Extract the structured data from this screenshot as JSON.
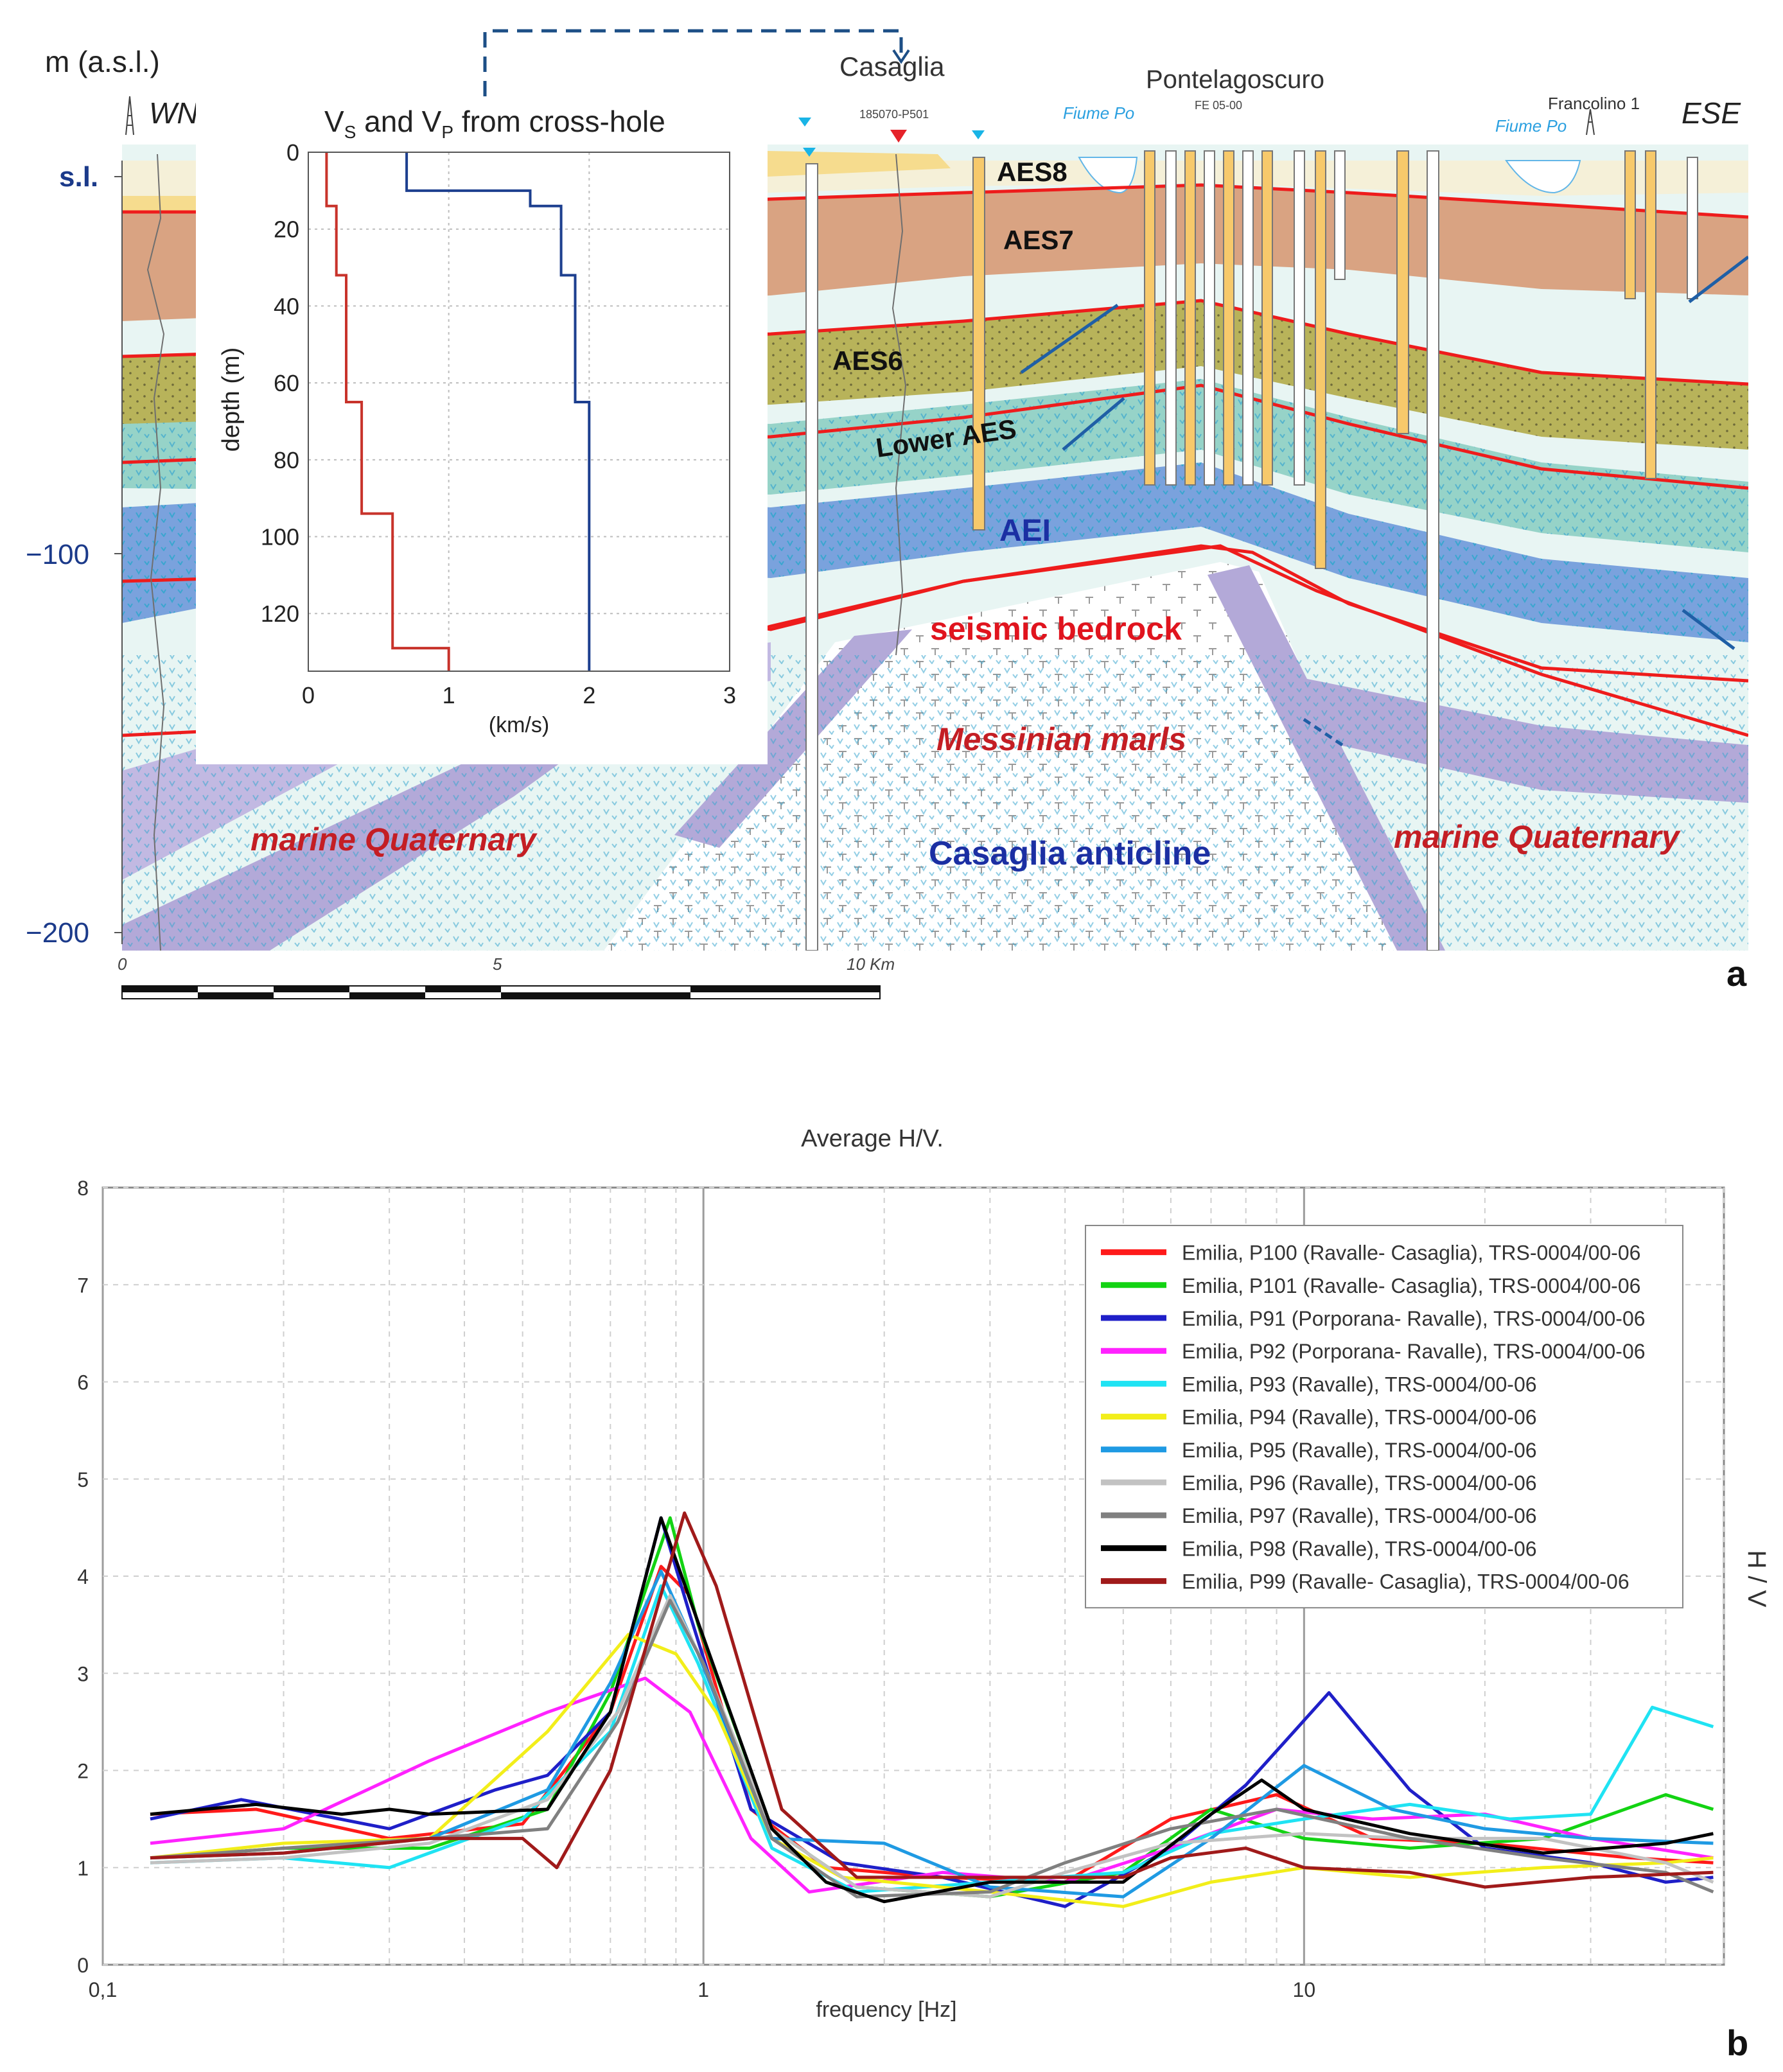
{
  "panel_a": {
    "vertical_axis_title": "m (a.s.l.)",
    "ylabels": {
      "sl": "s.l.",
      "m100": "−100",
      "m200": "−200"
    },
    "directions": {
      "west": "WNW",
      "east": "ESE"
    },
    "well_labels": {
      "casaglia": "Casaglia",
      "casaglia_id": "185070-P501",
      "pontelagoscuro": "Pontelagoscuro",
      "pontelagoscuro_id": "FE 05-00",
      "francolino": "Francolino 1",
      "fiume_po_1": "Fiume Po",
      "fiume_po_2": "Fiume Po"
    },
    "units": {
      "aes8": "AES8",
      "aes7": "AES7",
      "aes6": "AES6",
      "lower_aes": "Lower AES",
      "aei": "AEI",
      "seismic_bedrock": "seismic bedrock",
      "messinian": "Messinian marls",
      "marine_quaternary_left": "marine Quaternary",
      "marine_quaternary_right": "marine Quaternary",
      "anticline": "Casaglia anticline"
    },
    "scale_bar": {
      "zero": "0",
      "five": "5",
      "ten": "10 Km"
    },
    "panel_label": "a",
    "inset": {
      "title_prefix": "V",
      "title_sub_s": "S",
      "title_mid": " and V",
      "title_sub_p": "P",
      "title_suffix": " from cross-hole",
      "ylabel": "depth (m)",
      "xlabel": "(km/s)",
      "xticks": [
        "0",
        "1",
        "2",
        "3"
      ],
      "yticks": [
        "0",
        "20",
        "40",
        "60",
        "80",
        "100",
        "120"
      ]
    },
    "colors": {
      "boundary": "#ee1c1c",
      "aes7": "#d9a382",
      "aes6": "#b8b35a",
      "aei": "#6b96d6",
      "lower_aes": "#96d3c8",
      "marine": "#b3a9d8"
    }
  },
  "panel_b": {
    "title": "Average H/V.",
    "xlabel": "frequency [Hz]",
    "ylabel": "H / V",
    "panel_label": "b"
  },
  "chart_data": [
    {
      "type": "line",
      "title": "V_S and V_P from cross-hole",
      "xlabel": "(km/s)",
      "ylabel": "depth (m)",
      "xlim": [
        0,
        3
      ],
      "ylim": [
        135,
        0
      ],
      "series": [
        {
          "name": "Vs",
          "color": "#c8332b",
          "points": [
            [
              0.13,
              0
            ],
            [
              0.13,
              14
            ],
            [
              0.2,
              14
            ],
            [
              0.2,
              32
            ],
            [
              0.27,
              32
            ],
            [
              0.27,
              65
            ],
            [
              0.38,
              65
            ],
            [
              0.38,
              94
            ],
            [
              0.6,
              94
            ],
            [
              0.6,
              129
            ],
            [
              1.0,
              129
            ],
            [
              1.0,
              135
            ]
          ]
        },
        {
          "name": "Vp",
          "color": "#1d3f8f",
          "points": [
            [
              0.7,
              0
            ],
            [
              0.7,
              10
            ],
            [
              1.58,
              10
            ],
            [
              1.58,
              14
            ],
            [
              1.8,
              14
            ],
            [
              1.8,
              32
            ],
            [
              1.9,
              32
            ],
            [
              1.9,
              65
            ],
            [
              2.0,
              65
            ],
            [
              2.0,
              135
            ]
          ]
        }
      ]
    },
    {
      "type": "line",
      "title": "Average H/V.",
      "xlabel": "frequency [Hz]",
      "ylabel": "H / V",
      "xscale": "log",
      "xlim": [
        0.1,
        50
      ],
      "ylim": [
        0,
        8
      ],
      "xticks": [
        {
          "v": 0.1,
          "label": "0,1"
        },
        {
          "v": 1,
          "label": "1"
        },
        {
          "v": 10,
          "label": "10"
        }
      ],
      "yticks": [
        "0",
        "1",
        "2",
        "3",
        "4",
        "5",
        "6",
        "7",
        "8"
      ],
      "legend_position": "top-right",
      "series": [
        {
          "name": "Emilia, P100 (Ravalle- Casaglia), TRS-0004/00-06",
          "color": "#ff1a1a",
          "points": [
            [
              0.12,
              1.55
            ],
            [
              0.18,
              1.6
            ],
            [
              0.3,
              1.3
            ],
            [
              0.5,
              1.45
            ],
            [
              0.7,
              2.6
            ],
            [
              0.85,
              4.1
            ],
            [
              0.95,
              3.8
            ],
            [
              1.2,
              1.6
            ],
            [
              1.6,
              1.0
            ],
            [
              2.5,
              0.9
            ],
            [
              4,
              0.85
            ],
            [
              6,
              1.5
            ],
            [
              9,
              1.75
            ],
            [
              13,
              1.3
            ],
            [
              20,
              1.25
            ],
            [
              35,
              1.1
            ],
            [
              48,
              1.05
            ]
          ]
        },
        {
          "name": "Emilia, P101 (Ravalle- Casaglia), TRS-0004/00-06",
          "color": "#13d313",
          "points": [
            [
              0.12,
              1.1
            ],
            [
              0.2,
              1.2
            ],
            [
              0.35,
              1.2
            ],
            [
              0.55,
              1.6
            ],
            [
              0.7,
              2.8
            ],
            [
              0.88,
              4.6
            ],
            [
              0.98,
              3.5
            ],
            [
              1.3,
              1.4
            ],
            [
              1.8,
              0.8
            ],
            [
              3,
              0.7
            ],
            [
              5,
              0.95
            ],
            [
              7,
              1.6
            ],
            [
              10,
              1.3
            ],
            [
              15,
              1.2
            ],
            [
              25,
              1.3
            ],
            [
              40,
              1.75
            ],
            [
              48,
              1.6
            ]
          ]
        },
        {
          "name": "Emilia, P91 (Porporana- Ravalle), TRS-0004/00-06",
          "color": "#1f1fc8",
          "points": [
            [
              0.12,
              1.5
            ],
            [
              0.17,
              1.7
            ],
            [
              0.3,
              1.4
            ],
            [
              0.45,
              1.8
            ],
            [
              0.55,
              1.95
            ],
            [
              0.7,
              2.6
            ],
            [
              0.85,
              4.6
            ],
            [
              0.95,
              3.6
            ],
            [
              1.2,
              1.6
            ],
            [
              1.7,
              1.05
            ],
            [
              2.5,
              0.9
            ],
            [
              4,
              0.6
            ],
            [
              6,
              1.2
            ],
            [
              8,
              1.85
            ],
            [
              11,
              2.8
            ],
            [
              15,
              1.8
            ],
            [
              20,
              1.2
            ],
            [
              30,
              1.05
            ],
            [
              40,
              0.85
            ],
            [
              48,
              0.9
            ]
          ]
        },
        {
          "name": "Emilia, P92 (Porporana- Ravalle), TRS-0004/00-06",
          "color": "#ff22ff",
          "points": [
            [
              0.12,
              1.25
            ],
            [
              0.2,
              1.4
            ],
            [
              0.35,
              2.1
            ],
            [
              0.55,
              2.6
            ],
            [
              0.8,
              2.95
            ],
            [
              0.95,
              2.6
            ],
            [
              1.2,
              1.3
            ],
            [
              1.5,
              0.75
            ],
            [
              2.5,
              0.95
            ],
            [
              4,
              0.85
            ],
            [
              6,
              1.2
            ],
            [
              9,
              1.6
            ],
            [
              13,
              1.5
            ],
            [
              20,
              1.55
            ],
            [
              30,
              1.3
            ],
            [
              48,
              1.1
            ]
          ]
        },
        {
          "name": "Emilia, P93 (Ravalle), TRS-0004/00-06",
          "color": "#1fe3f3",
          "points": [
            [
              0.12,
              1.05
            ],
            [
              0.2,
              1.1
            ],
            [
              0.3,
              1.0
            ],
            [
              0.5,
              1.5
            ],
            [
              0.7,
              2.4
            ],
            [
              0.85,
              3.9
            ],
            [
              0.98,
              3.1
            ],
            [
              1.3,
              1.2
            ],
            [
              1.8,
              0.75
            ],
            [
              3,
              0.85
            ],
            [
              5,
              0.95
            ],
            [
              7,
              1.35
            ],
            [
              10,
              1.5
            ],
            [
              15,
              1.65
            ],
            [
              22,
              1.5
            ],
            [
              30,
              1.55
            ],
            [
              38,
              2.65
            ],
            [
              48,
              2.45
            ]
          ]
        },
        {
          "name": "Emilia, P94 (Ravalle), TRS-0004/00-06",
          "color": "#f2ee1a",
          "points": [
            [
              0.12,
              1.1
            ],
            [
              0.2,
              1.25
            ],
            [
              0.35,
              1.3
            ],
            [
              0.55,
              2.4
            ],
            [
              0.75,
              3.4
            ],
            [
              0.9,
              3.2
            ],
            [
              1.05,
              2.6
            ],
            [
              1.3,
              1.3
            ],
            [
              1.7,
              0.9
            ],
            [
              3,
              0.75
            ],
            [
              5,
              0.6
            ],
            [
              7,
              0.85
            ],
            [
              10,
              1.0
            ],
            [
              15,
              0.9
            ],
            [
              25,
              1.0
            ],
            [
              40,
              1.05
            ],
            [
              48,
              1.1
            ]
          ]
        },
        {
          "name": "Emilia, P95 (Ravalle), TRS-0004/00-06",
          "color": "#1f9ae3",
          "points": [
            [
              0.12,
              1.1
            ],
            [
              0.2,
              1.15
            ],
            [
              0.35,
              1.3
            ],
            [
              0.55,
              1.8
            ],
            [
              0.7,
              2.9
            ],
            [
              0.85,
              4.05
            ],
            [
              0.98,
              3.2
            ],
            [
              1.3,
              1.3
            ],
            [
              2,
              1.25
            ],
            [
              3,
              0.8
            ],
            [
              5,
              0.7
            ],
            [
              7,
              1.3
            ],
            [
              10,
              2.05
            ],
            [
              14,
              1.6
            ],
            [
              20,
              1.4
            ],
            [
              30,
              1.3
            ],
            [
              48,
              1.25
            ]
          ]
        },
        {
          "name": "Emilia, P96 (Ravalle), TRS-0004/00-06",
          "color": "#c2c2c2",
          "points": [
            [
              0.12,
              1.05
            ],
            [
              0.2,
              1.1
            ],
            [
              0.35,
              1.25
            ],
            [
              0.55,
              1.7
            ],
            [
              0.72,
              2.6
            ],
            [
              0.88,
              3.8
            ],
            [
              1.0,
              3.1
            ],
            [
              1.3,
              1.4
            ],
            [
              1.8,
              0.8
            ],
            [
              3,
              0.7
            ],
            [
              4,
              0.95
            ],
            [
              6,
              1.25
            ],
            [
              10,
              1.35
            ],
            [
              15,
              1.3
            ],
            [
              25,
              1.3
            ],
            [
              40,
              1.05
            ],
            [
              48,
              0.85
            ]
          ]
        },
        {
          "name": "Emilia, P97 (Ravalle), TRS-0004/00-06",
          "color": "#808080",
          "points": [
            [
              0.12,
              1.1
            ],
            [
              0.2,
              1.2
            ],
            [
              0.35,
              1.3
            ],
            [
              0.55,
              1.4
            ],
            [
              0.72,
              2.5
            ],
            [
              0.88,
              3.75
            ],
            [
              1.0,
              3.1
            ],
            [
              1.3,
              1.3
            ],
            [
              1.8,
              0.7
            ],
            [
              3,
              0.75
            ],
            [
              4,
              1.05
            ],
            [
              6,
              1.4
            ],
            [
              9,
              1.6
            ],
            [
              15,
              1.3
            ],
            [
              25,
              1.1
            ],
            [
              40,
              0.95
            ],
            [
              48,
              0.75
            ]
          ]
        },
        {
          "name": "Emilia, P98 (Ravalle), TRS-0004/00-06",
          "color": "#000000",
          "points": [
            [
              0.12,
              1.55
            ],
            [
              0.18,
              1.65
            ],
            [
              0.25,
              1.55
            ],
            [
              0.3,
              1.6
            ],
            [
              0.35,
              1.55
            ],
            [
              0.55,
              1.6
            ],
            [
              0.7,
              2.6
            ],
            [
              0.85,
              4.6
            ],
            [
              0.97,
              3.6
            ],
            [
              1.3,
              1.4
            ],
            [
              1.6,
              0.85
            ],
            [
              2.0,
              0.65
            ],
            [
              3,
              0.85
            ],
            [
              5,
              0.85
            ],
            [
              7,
              1.55
            ],
            [
              8.5,
              1.9
            ],
            [
              10,
              1.6
            ],
            [
              15,
              1.35
            ],
            [
              25,
              1.15
            ],
            [
              40,
              1.25
            ],
            [
              48,
              1.35
            ]
          ]
        },
        {
          "name": "Emilia, P99 (Ravalle- Casaglia), TRS-0004/00-06",
          "color": "#a01a1a",
          "points": [
            [
              0.12,
              1.1
            ],
            [
              0.2,
              1.15
            ],
            [
              0.35,
              1.3
            ],
            [
              0.5,
              1.3
            ],
            [
              0.57,
              1.0
            ],
            [
              0.7,
              2.0
            ],
            [
              0.93,
              4.65
            ],
            [
              1.05,
              3.9
            ],
            [
              1.35,
              1.6
            ],
            [
              1.8,
              0.9
            ],
            [
              3,
              0.9
            ],
            [
              5,
              0.9
            ],
            [
              6,
              1.1
            ],
            [
              8,
              1.2
            ],
            [
              10,
              1.0
            ],
            [
              15,
              0.95
            ],
            [
              20,
              0.8
            ],
            [
              30,
              0.9
            ],
            [
              48,
              0.95
            ]
          ]
        }
      ]
    }
  ]
}
